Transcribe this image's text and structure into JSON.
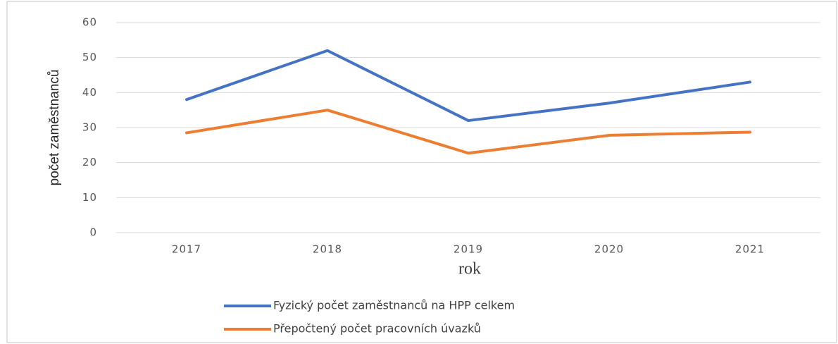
{
  "chart_data": {
    "type": "line",
    "x_label": "rok",
    "y_label": "počet zaměstnanců",
    "categories": [
      "2017",
      "2018",
      "2019",
      "2020",
      "2021"
    ],
    "series": [
      {
        "name": "Fyzický počet zaměstnanců na HPP celkem",
        "color": "#4472c4",
        "values": [
          38,
          52,
          32,
          37,
          43
        ]
      },
      {
        "name": "Přepočtený počet pracovních úvazků",
        "color": "#ed7d31",
        "values": [
          28.5,
          35,
          22.7,
          27.8,
          28.7
        ]
      }
    ],
    "ylim": [
      0,
      60
    ],
    "yticks": [
      0,
      10,
      20,
      30,
      40,
      50,
      60
    ],
    "grid": true,
    "legend": "bottom"
  }
}
